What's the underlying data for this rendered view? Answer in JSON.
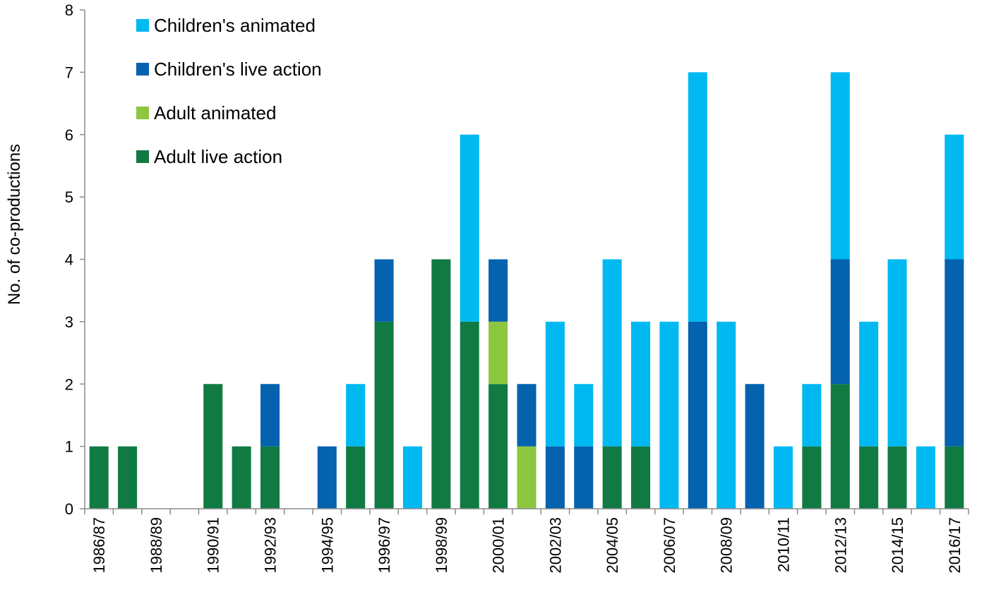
{
  "chart_data": {
    "type": "bar",
    "stacked": true,
    "title": "",
    "xlabel": "",
    "ylabel": "No. of co-productions",
    "ylim": [
      0,
      8
    ],
    "yticks": [
      0,
      1,
      2,
      3,
      4,
      5,
      6,
      7,
      8
    ],
    "grid": false,
    "legend_position": "top-left",
    "categories": [
      "1986/87",
      "1987/88",
      "1988/89",
      "1989/90",
      "1990/91",
      "1991/92",
      "1992/93",
      "1993/94",
      "1994/95",
      "1995/96",
      "1996/97",
      "1997/98",
      "1998/99",
      "1999/00",
      "2000/01",
      "2001/02",
      "2002/03",
      "2003/04",
      "2004/05",
      "2005/06",
      "2006/07",
      "2007/08",
      "2008/09",
      "2009/10",
      "2010/11",
      "2011/12",
      "2012/13",
      "2013/14",
      "2014/15",
      "2015/16",
      "2016/17"
    ],
    "tick_labels": [
      "1986/87",
      "",
      "1988/89",
      "",
      "1990/91",
      "",
      "1992/93",
      "",
      "1994/95",
      "",
      "1996/97",
      "",
      "1998/99",
      "",
      "2000/01",
      "",
      "2002/03",
      "",
      "2004/05",
      "",
      "2006/07",
      "",
      "2008/09",
      "",
      "2010/11",
      "",
      "2012/13",
      "",
      "2014/15",
      "",
      "2016/17"
    ],
    "series": [
      {
        "name": "Adult live action",
        "color": "#117A43",
        "values": [
          1,
          1,
          0,
          0,
          2,
          1,
          1,
          0,
          0,
          1,
          3,
          0,
          4,
          3,
          2,
          0,
          0,
          0,
          1,
          1,
          0,
          0,
          0,
          0,
          0,
          1,
          2,
          1,
          1,
          0,
          1
        ]
      },
      {
        "name": "Adult animated",
        "color": "#8DC63F",
        "values": [
          0,
          0,
          0,
          0,
          0,
          0,
          0,
          0,
          0,
          0,
          0,
          0,
          0,
          0,
          1,
          1,
          0,
          0,
          0,
          0,
          0,
          0,
          0,
          0,
          0,
          0,
          0,
          0,
          0,
          0,
          0
        ]
      },
      {
        "name": "Children's live action",
        "color": "#0562AF",
        "values": [
          0,
          0,
          0,
          0,
          0,
          0,
          1,
          0,
          1,
          0,
          1,
          0,
          0,
          0,
          1,
          1,
          1,
          1,
          0,
          0,
          0,
          3,
          0,
          2,
          0,
          0,
          2,
          0,
          0,
          0,
          3
        ]
      },
      {
        "name": "Children's animated",
        "color": "#00B9F1",
        "values": [
          0,
          0,
          0,
          0,
          0,
          0,
          0,
          0,
          0,
          1,
          0,
          1,
          0,
          3,
          0,
          0,
          2,
          1,
          3,
          2,
          3,
          4,
          3,
          0,
          1,
          1,
          3,
          2,
          3,
          1,
          2
        ]
      }
    ],
    "legend_order": [
      "Children's animated",
      "Children's live action",
      "Adult animated",
      "Adult live action"
    ]
  }
}
